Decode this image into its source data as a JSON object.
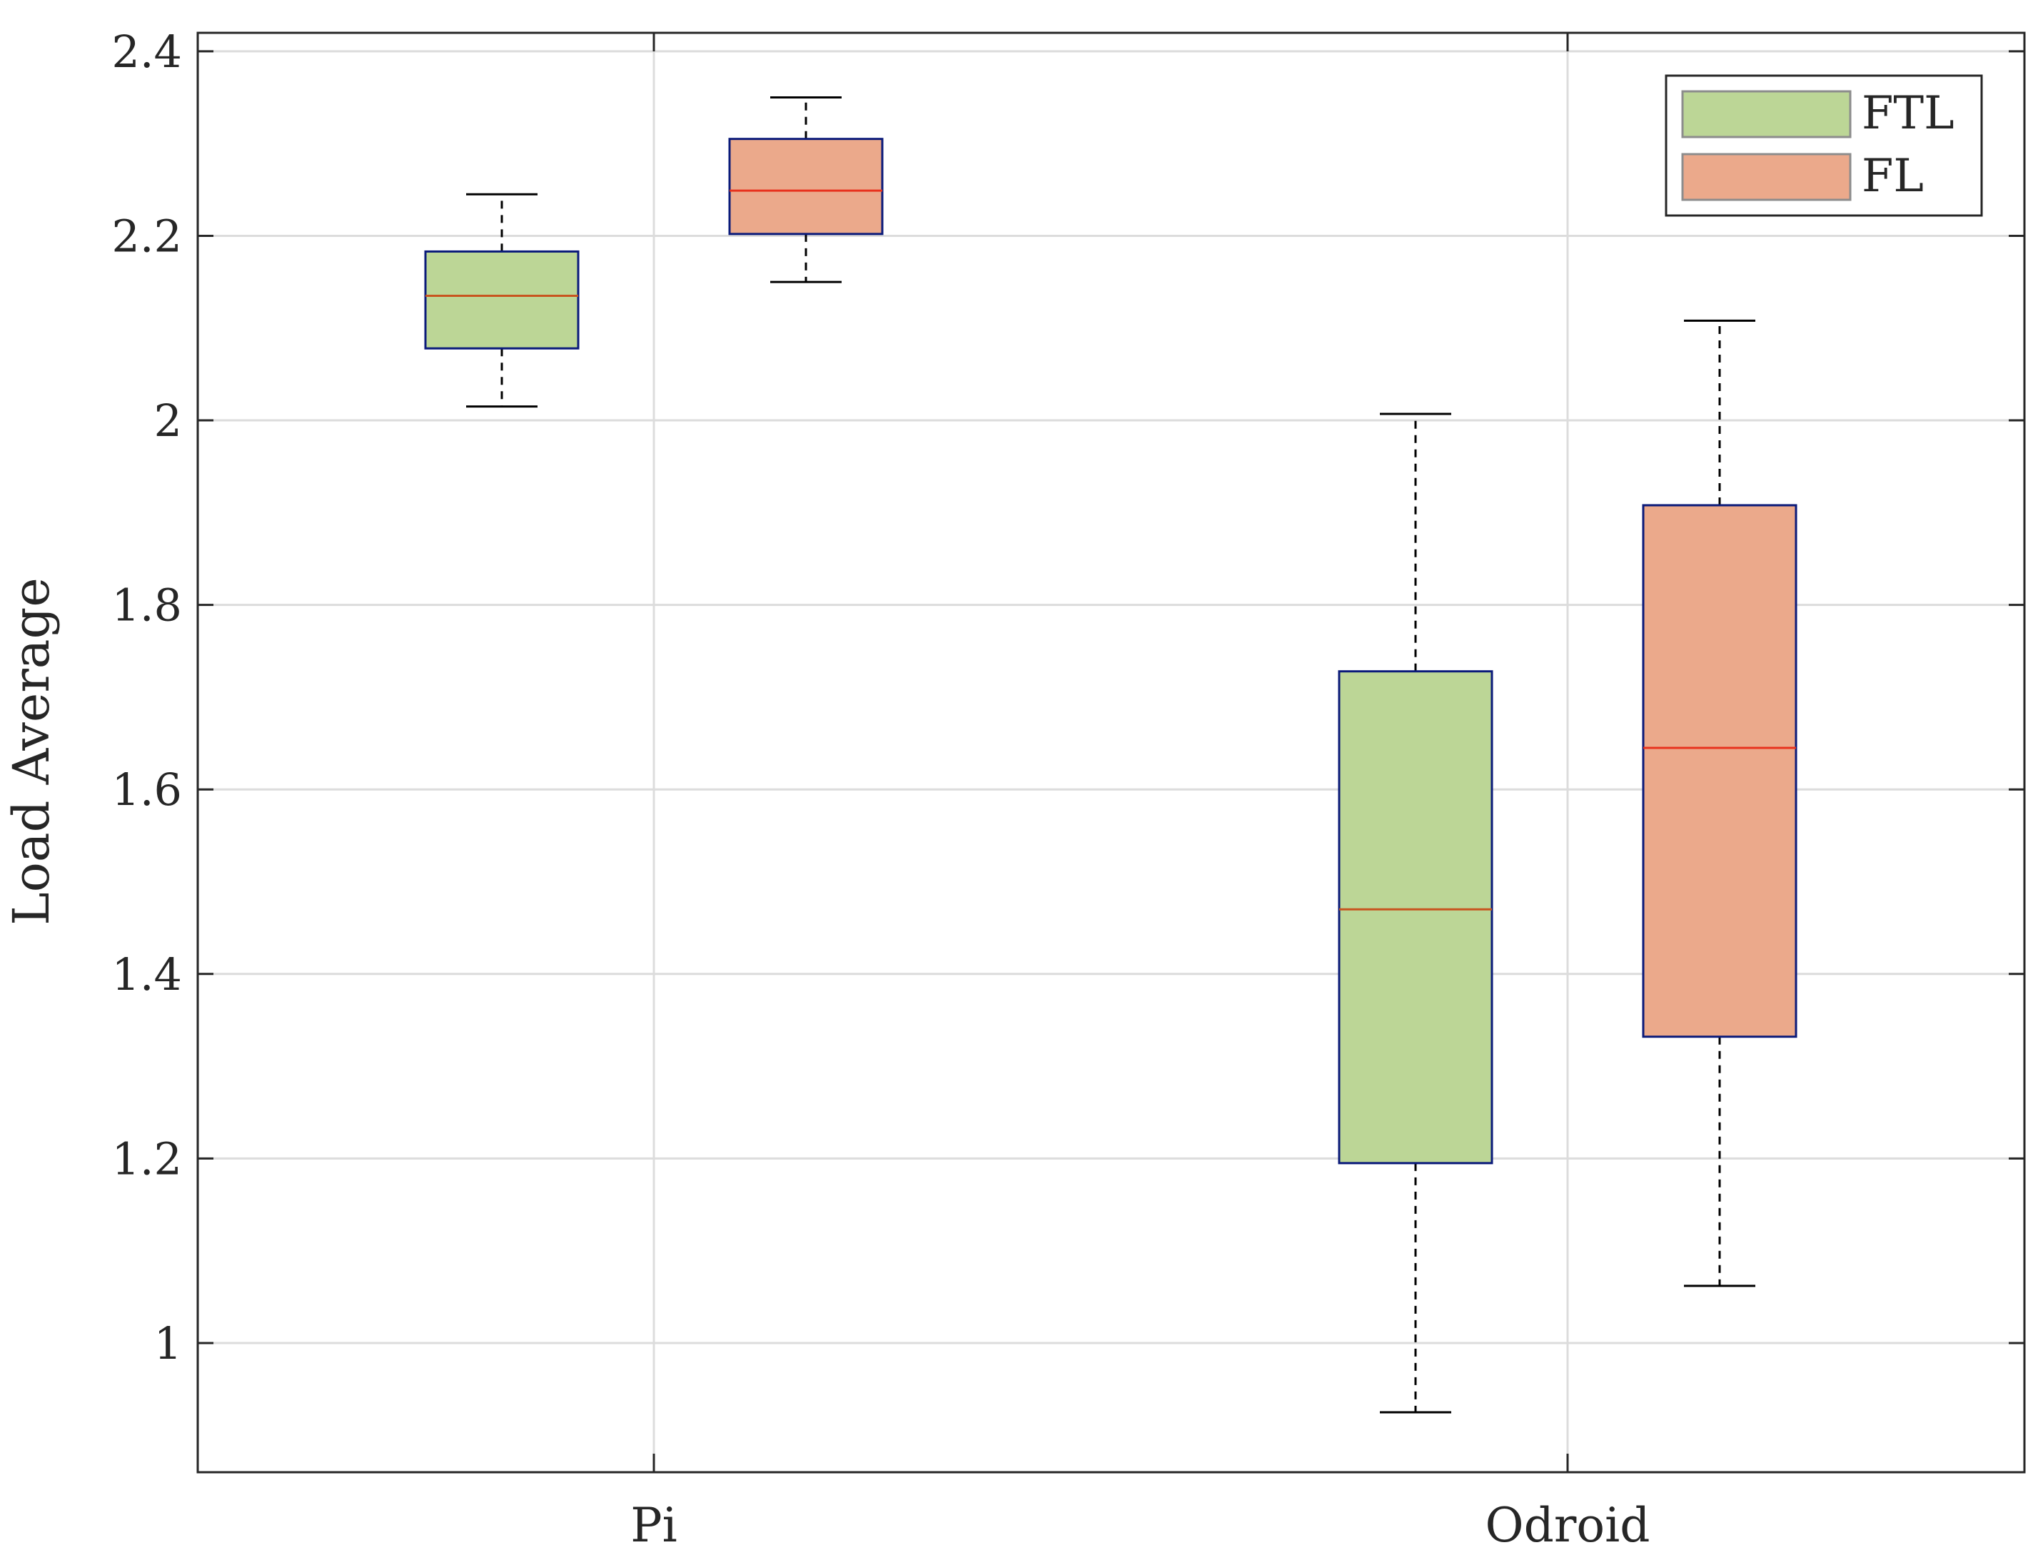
{
  "chart_data": {
    "type": "boxplot",
    "title": "",
    "xlabel": "",
    "ylabel": "Load Average",
    "ylim": [
      0.86,
      2.42
    ],
    "yticks": [
      1,
      1.2,
      1.4,
      1.6,
      1.8,
      2,
      2.2,
      2.4
    ],
    "ytick_labels": [
      "1",
      "1.2",
      "1.4",
      "1.6",
      "1.8",
      "2",
      "2.2",
      "2.4"
    ],
    "categories": [
      "Pi",
      "Odroid"
    ],
    "grid": true,
    "legend_position": "top-right",
    "series": [
      {
        "name": "FTL",
        "fill": "#bcd696",
        "median_color": "#c8541e",
        "boxes": [
          {
            "whisker_low": 2.015,
            "q1": 2.078,
            "median": 2.135,
            "q3": 2.183,
            "whisker_high": 2.245
          },
          {
            "whisker_low": 0.925,
            "q1": 1.195,
            "median": 1.47,
            "q3": 1.728,
            "whisker_high": 2.007
          }
        ]
      },
      {
        "name": "FL",
        "fill": "#eba98b",
        "median_color": "#e8321e",
        "boxes": [
          {
            "whisker_low": 2.15,
            "q1": 2.202,
            "median": 2.249,
            "q3": 2.305,
            "whisker_high": 2.35
          },
          {
            "whisker_low": 1.062,
            "q1": 1.332,
            "median": 1.645,
            "q3": 1.908,
            "whisker_high": 2.108
          }
        ]
      }
    ]
  }
}
